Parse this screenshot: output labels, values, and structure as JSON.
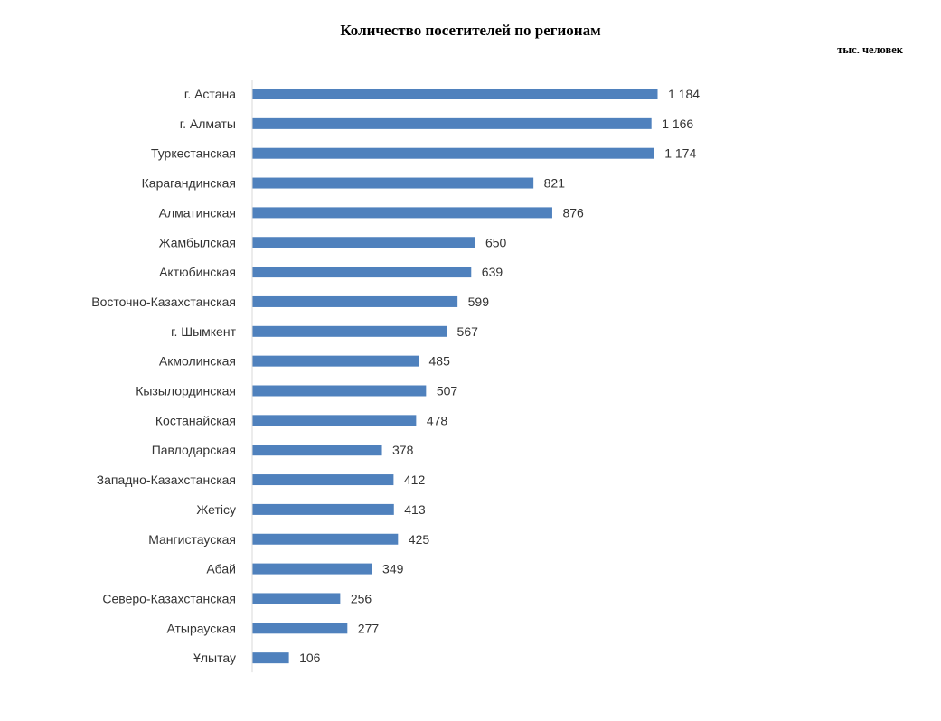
{
  "chart_data": {
    "type": "bar",
    "orientation": "horizontal",
    "title": "Количество посетителей по регионам",
    "unit_label": "тыс. человек",
    "categories": [
      "г. Астана",
      "г. Алматы",
      "Туркестанская",
      "Карагандинская",
      "Алматинская",
      "Жамбылская",
      "Актюбинская",
      "Восточно-Казахстанская",
      "г. Шымкент",
      "Акмолинская",
      "Кызылординская",
      "Костанайская",
      "Павлодарская",
      "Западно-Казахстанская",
      "Жетісу",
      "Мангистауская",
      "Абай",
      "Северо-Казахстанская",
      "Атырауская",
      "Ұлытау"
    ],
    "values": [
      1184,
      1166,
      1174,
      821,
      876,
      650,
      639,
      599,
      567,
      485,
      507,
      478,
      378,
      412,
      413,
      425,
      349,
      256,
      277,
      106
    ],
    "value_labels": [
      "1 184",
      "1 166",
      "1 174",
      "821",
      "876",
      "650",
      "639",
      "599",
      "567",
      "485",
      "507",
      "478",
      "378",
      "412",
      "413",
      "425",
      "349",
      "256",
      "277",
      "106"
    ],
    "xlim": [
      0,
      1200
    ],
    "grid": false,
    "legend": "none",
    "bar_color": "#4f81bd",
    "axis_color": "#d9d9d9"
  }
}
